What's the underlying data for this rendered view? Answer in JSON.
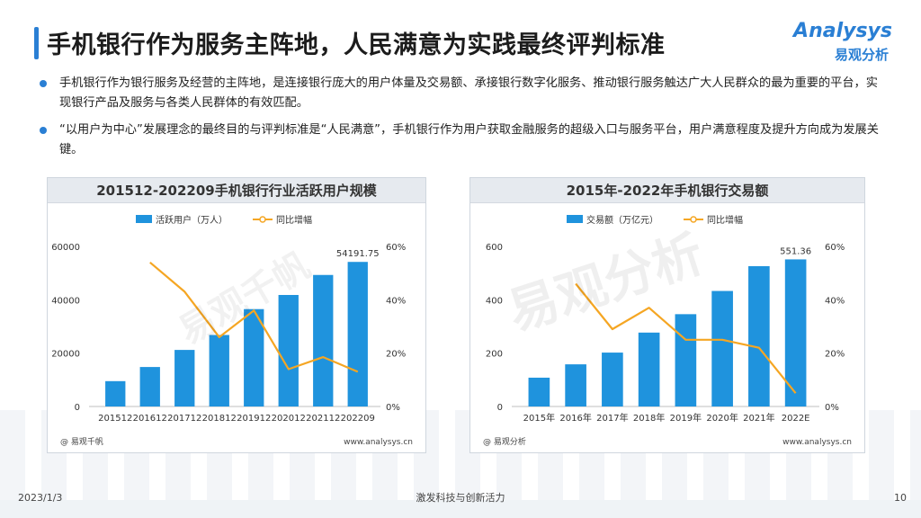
{
  "page": {
    "title": "手机银行作为服务主阵地，人民满意为实践最终评判标准",
    "logo_en": "Analysys",
    "logo_zh": "易观分析",
    "bullets": [
      "手机银行作为银行服务及经营的主阵地，是连接银行庞大的用户体量及交易额、承接银行数字化服务、推动银行服务触达广大人民群众的最为重要的平台，实现银行产品及服务与各类人民群体的有效匹配。",
      "“以用户为中心”发展理念的最终目的与评判标准是“人民满意”，手机银行作为用户获取金融服务的超级入口与服务平台，用户满意程度及提升方向成为发展关键。"
    ],
    "footer": {
      "date": "2023/1/3",
      "slogan": "激发科技与创新活力",
      "page_number": "10"
    },
    "watermarks": [
      "易观千帆",
      "易观分析"
    ]
  },
  "colors": {
    "accent": "#2a7fd4",
    "bar": "#1f93dd",
    "line": "#f5a623"
  },
  "chart_data": [
    {
      "type": "bar",
      "title": "201512-202209手机银行行业活跃用户规模",
      "categories": [
        "201512",
        "201612",
        "201712",
        "201812",
        "201912",
        "202012",
        "202112",
        "202209"
      ],
      "series": [
        {
          "name": "活跃用户（万人）",
          "type": "bar",
          "axis": "left",
          "values": [
            9500,
            14800,
            21200,
            26800,
            36500,
            41800,
            49300,
            54191.75
          ]
        },
        {
          "name": "同比增幅",
          "type": "line",
          "axis": "right",
          "values": [
            null,
            54,
            43,
            26,
            36,
            14,
            18.5,
            13
          ]
        }
      ],
      "left_axis": {
        "min": 0,
        "max": 60000,
        "ticks": [
          "0",
          "20000",
          "40000",
          "60000"
        ]
      },
      "right_axis": {
        "min": 0,
        "max": 60,
        "ticks": [
          "0%",
          "20%",
          "40%",
          "60%"
        ]
      },
      "data_labels": [
        {
          "index": 7,
          "text": "54191.75"
        }
      ],
      "source_left": "@ 易观千帆",
      "source_right": "www.analysys.cn",
      "legend": "top-center"
    },
    {
      "type": "bar",
      "title": "2015年-2022年手机银行交易额",
      "categories": [
        "2015年",
        "2016年",
        "2017年",
        "2018年",
        "2019年",
        "2020年",
        "2021年",
        "2022E"
      ],
      "series": [
        {
          "name": "交易额（万亿元）",
          "type": "bar",
          "axis": "left",
          "values": [
            108,
            158,
            202,
            277,
            346,
            433,
            526,
            551.36
          ]
        },
        {
          "name": "同比增幅",
          "type": "line",
          "axis": "right",
          "values": [
            null,
            46,
            29,
            37,
            25,
            25,
            22,
            5
          ]
        }
      ],
      "left_axis": {
        "min": 0,
        "max": 600,
        "ticks": [
          "0",
          "200",
          "400",
          "600"
        ]
      },
      "right_axis": {
        "min": 0,
        "max": 60,
        "ticks": [
          "0%",
          "20%",
          "40%",
          "60%"
        ]
      },
      "data_labels": [
        {
          "index": 7,
          "text": "551.36"
        }
      ],
      "source_left": "@ 易观分析",
      "source_right": "www.analysys.cn",
      "legend": "top-center"
    }
  ]
}
